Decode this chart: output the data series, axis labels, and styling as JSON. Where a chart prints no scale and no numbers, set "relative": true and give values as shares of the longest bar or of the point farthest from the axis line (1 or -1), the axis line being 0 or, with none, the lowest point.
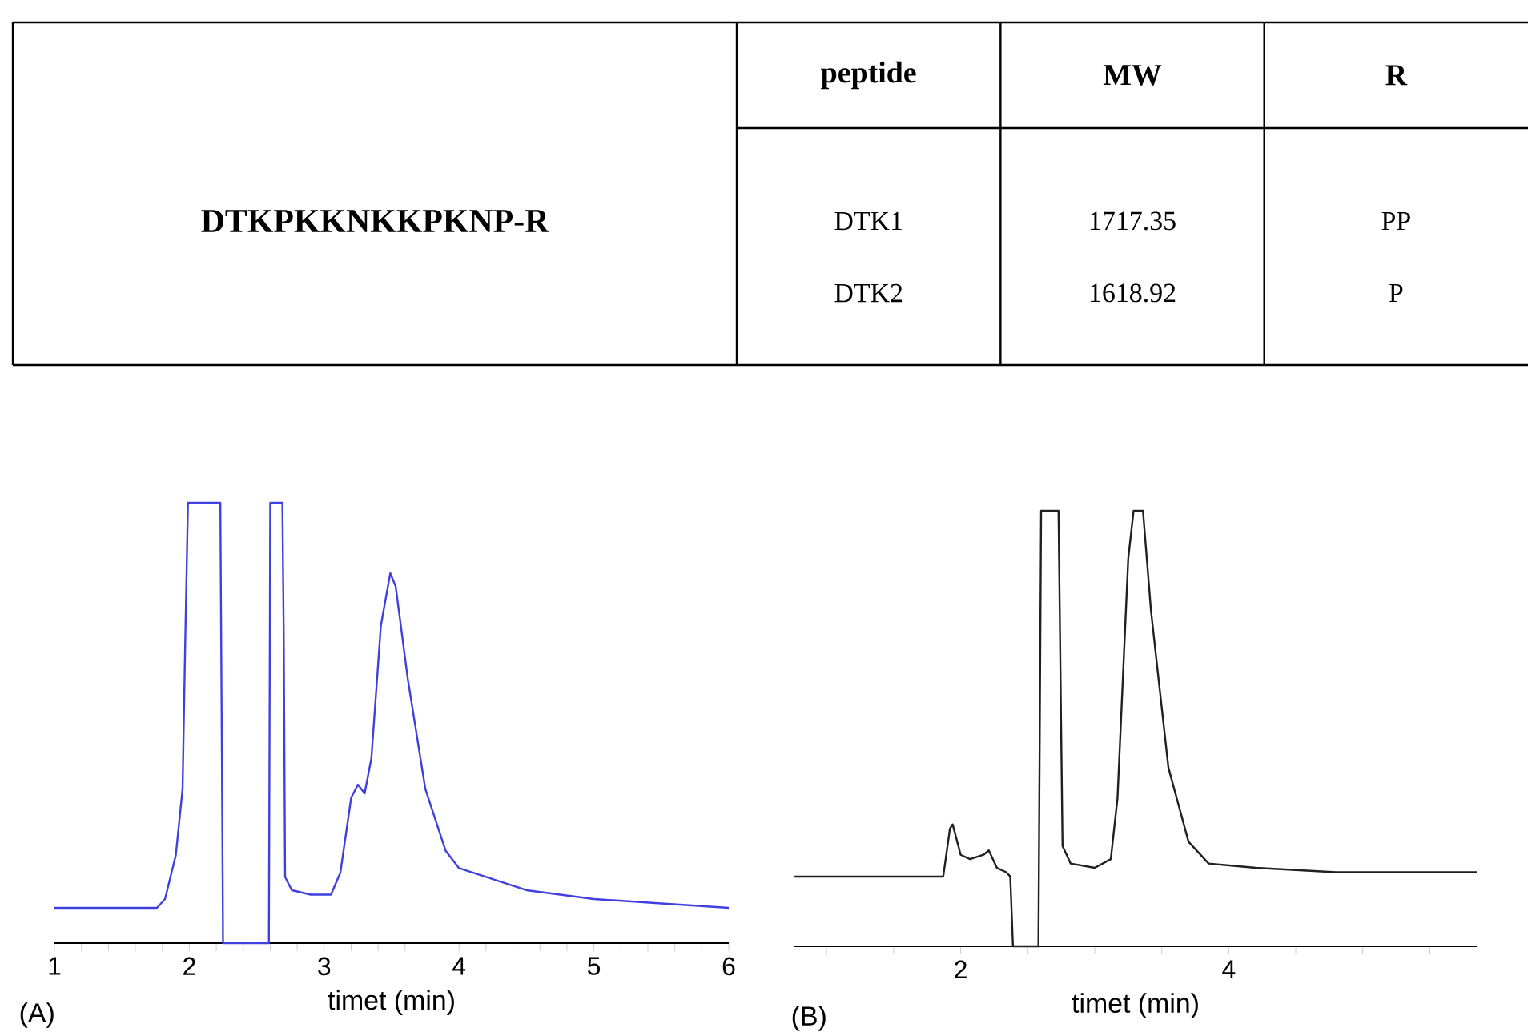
{
  "chart_data": [
    {
      "type": "other",
      "title": "DTKPKKNKKPKNP-R",
      "categories": [
        "peptide",
        "MW",
        "R"
      ],
      "annotations": [
        "DTK1",
        "1717.35",
        "PP",
        "DTK2",
        "1618.92",
        "P"
      ]
    },
    {
      "type": "line",
      "relative": true,
      "color": "#4040e0",
      "xlabel": "timet (min)",
      "annotations": [
        "(A)"
      ],
      "xlim": [
        1,
        6
      ],
      "xticks": [
        1,
        {
          "value": 1.2,
          "label": null
        },
        {
          "value": 1.4,
          "label": null
        },
        {
          "value": 1.6,
          "label": null
        },
        {
          "value": 1.8,
          "label": null
        },
        2,
        {
          "value": 2.2,
          "label": null
        },
        {
          "value": 2.4,
          "label": null
        },
        {
          "value": 2.6,
          "label": null
        },
        {
          "value": 2.8,
          "label": null
        },
        3,
        {
          "value": 3.2,
          "label": null
        },
        {
          "value": 3.4,
          "label": null
        },
        {
          "value": 3.6,
          "label": null
        },
        {
          "value": 3.8,
          "label": null
        },
        4,
        {
          "value": 4.2,
          "label": null
        },
        {
          "value": 4.4,
          "label": null
        },
        {
          "value": 4.6,
          "label": null
        },
        {
          "value": 4.8,
          "label": null
        },
        5,
        {
          "value": 5.2,
          "label": null
        },
        {
          "value": 5.4,
          "label": null
        },
        {
          "value": 5.6,
          "label": null
        },
        {
          "value": 5.8,
          "label": null
        },
        6
      ],
      "x": [
        1.0,
        1.76,
        1.82,
        1.9,
        1.95,
        1.97,
        1.99,
        2.23,
        2.25,
        2.59,
        2.6,
        2.69,
        2.7,
        2.71,
        2.76,
        2.9,
        3.05,
        3.12,
        3.2,
        3.25,
        3.3,
        3.35,
        3.42,
        3.49,
        3.53,
        3.62,
        3.75,
        3.9,
        4.0,
        4.2,
        4.5,
        5.0,
        5.5,
        6.0
      ],
      "values": [
        0.08,
        0.08,
        0.1,
        0.2,
        0.35,
        0.69,
        1,
        1,
        0,
        0,
        1,
        1,
        0.7,
        0.15,
        0.12,
        0.11,
        0.11,
        0.16,
        0.33,
        0.36,
        0.34,
        0.42,
        0.72,
        0.84,
        0.81,
        0.6,
        0.35,
        0.21,
        0.17,
        0.15,
        0.12,
        0.1,
        0.09,
        0.08
      ]
    },
    {
      "type": "line",
      "relative": true,
      "color": "#202020",
      "xlabel": "timet (min)",
      "annotations": [
        "(B)"
      ],
      "xlim": [
        0.76,
        5.85
      ],
      "xticks": [
        {
          "value": 1,
          "label": null
        },
        {
          "value": 1.5,
          "label": null
        },
        2,
        {
          "value": 2.5,
          "label": null
        },
        {
          "value": 3,
          "label": null
        },
        {
          "value": 3.5,
          "label": null
        },
        4,
        {
          "value": 4.5,
          "label": null
        },
        {
          "value": 5,
          "label": null
        },
        {
          "value": 5.5,
          "label": null
        }
      ],
      "x": [
        0.76,
        1.87,
        1.92,
        1.94,
        2.0,
        2.07,
        2.17,
        2.21,
        2.27,
        2.34,
        2.37,
        2.39,
        2.58,
        2.6,
        2.73,
        2.76,
        2.82,
        3.0,
        3.12,
        3.17,
        3.25,
        3.29,
        3.36,
        3.42,
        3.55,
        3.7,
        3.85,
        4.2,
        4.8,
        5.2,
        5.85
      ],
      "values": [
        0.16,
        0.16,
        0.27,
        0.28,
        0.21,
        0.2,
        0.21,
        0.22,
        0.18,
        0.17,
        0.16,
        0,
        0,
        1,
        1,
        0.23,
        0.19,
        0.18,
        0.2,
        0.34,
        0.89,
        1,
        1,
        0.77,
        0.41,
        0.24,
        0.19,
        0.18,
        0.17,
        0.17,
        0.17
      ]
    }
  ]
}
